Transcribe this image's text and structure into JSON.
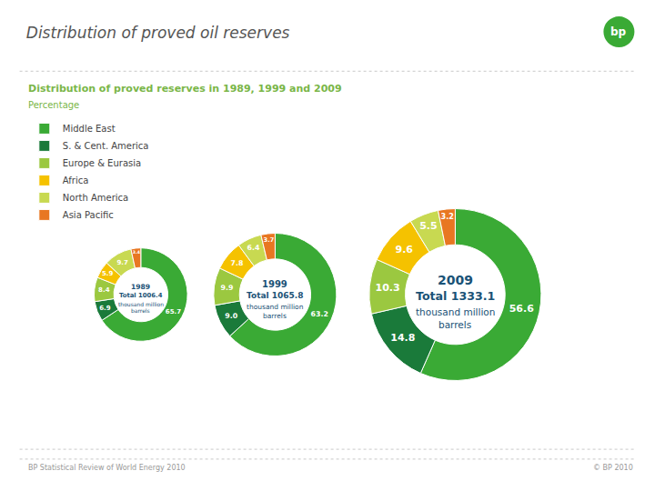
{
  "title": "Distribution of proved oil reserves",
  "subtitle": "Distribution of proved reserves in 1989, 1999 and 2009",
  "annotations": [
    "Percentage",
    "bp",
    "BP Statistical Review of World Energy 2010",
    "© BP 2010"
  ],
  "chart_data": [
    {
      "type": "pie",
      "title": "1989",
      "annotations": [
        "Total 1006.4",
        "thousand million",
        "barrels"
      ],
      "categories": [
        "Middle East",
        "S. & Cent. America",
        "Europe & Eurasia",
        "Africa",
        "North America",
        "Asia Pacific"
      ],
      "values": [
        65.7,
        6.9,
        8.4,
        5.9,
        9.7,
        3.4
      ],
      "value_labels": [
        "65.7",
        "6.9",
        "8.4",
        "5.9",
        "9.7",
        "3.4"
      ],
      "colors": [
        "#3aaa35",
        "#1a7a3a",
        "#9bc840",
        "#f5c200",
        "#c8d951",
        "#e87722"
      ],
      "data_labels": true,
      "legend": "top-left"
    },
    {
      "type": "pie",
      "title": "1999",
      "annotations": [
        "Total 1065.8",
        "thousand million",
        "barrels"
      ],
      "categories": [
        "Middle East",
        "S. & Cent. America",
        "Europe & Eurasia",
        "Africa",
        "North America",
        "Asia Pacific"
      ],
      "values": [
        63.2,
        9.0,
        9.9,
        7.8,
        6.4,
        3.7
      ],
      "value_labels": [
        "63.2",
        "9.0",
        "9.9",
        "7.8",
        "6.4",
        "3.7"
      ],
      "colors": [
        "#3aaa35",
        "#1a7a3a",
        "#9bc840",
        "#f5c200",
        "#c8d951",
        "#e87722"
      ],
      "data_labels": true
    },
    {
      "type": "pie",
      "title": "2009",
      "annotations": [
        "Total 1333.1",
        "thousand million",
        "barrels"
      ],
      "categories": [
        "Middle East",
        "S. & Cent. America",
        "Europe & Eurasia",
        "Africa",
        "North America",
        "Asia Pacific"
      ],
      "values": [
        56.6,
        14.8,
        10.3,
        9.6,
        5.5,
        3.2
      ],
      "value_labels": [
        "56.6",
        "14.8",
        "10.3",
        "9.6",
        "5.5",
        "3.2"
      ],
      "colors": [
        "#3aaa35",
        "#1a7a3a",
        "#9bc840",
        "#f5c200",
        "#c8d951",
        "#e87722"
      ],
      "data_labels": true
    }
  ]
}
